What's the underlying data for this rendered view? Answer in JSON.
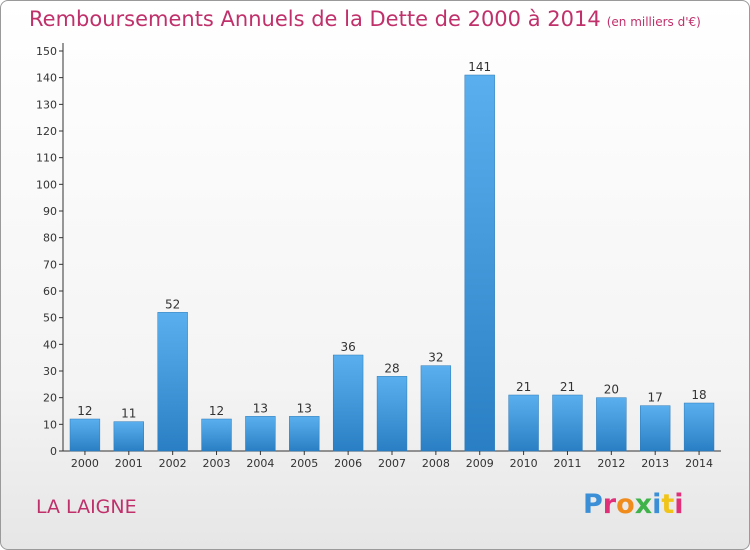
{
  "header": {
    "title": "Remboursements Annuels de la Dette de 2000 à 2014",
    "subtitle": "(en milliers d'€)"
  },
  "footer": {
    "location": "LA LAIGNE",
    "brand": "Proxiti"
  },
  "colors": {
    "title": "#c0306a",
    "bar_light": "#5ab0ee",
    "bar_dark": "#2a7fc4"
  },
  "chart_data": {
    "type": "bar",
    "title": "Remboursements Annuels de la Dette de 2000 à 2014",
    "xlabel": "",
    "ylabel": "",
    "categories": [
      "2000",
      "2001",
      "2002",
      "2003",
      "2004",
      "2005",
      "2006",
      "2007",
      "2008",
      "2009",
      "2010",
      "2011",
      "2012",
      "2013",
      "2014"
    ],
    "values": [
      12,
      11,
      52,
      12,
      13,
      13,
      36,
      28,
      32,
      141,
      21,
      21,
      20,
      17,
      18
    ],
    "ylim": [
      0,
      150
    ],
    "yticks": [
      0,
      10,
      20,
      30,
      40,
      50,
      60,
      70,
      80,
      90,
      100,
      110,
      120,
      130,
      140,
      150
    ],
    "grid": false,
    "legend": "none"
  }
}
